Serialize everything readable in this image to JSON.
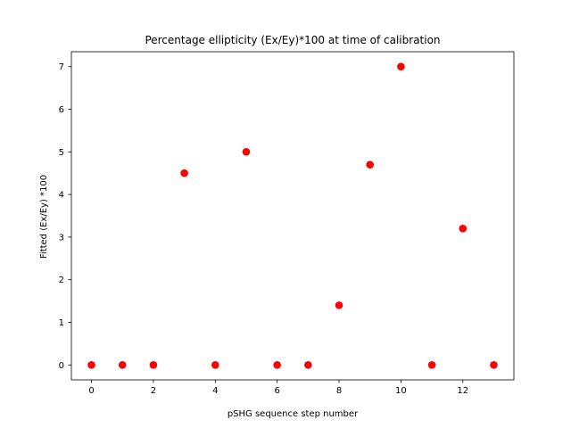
{
  "chart_data": {
    "type": "scatter",
    "title": "Percentage ellipticity (Ex/Ey)*100 at time of calibration",
    "xlabel": "pSHG sequence step number",
    "ylabel": "Fitted (Ex/Ey) *100",
    "x": [
      0,
      1,
      2,
      3,
      4,
      5,
      6,
      7,
      8,
      9,
      10,
      11,
      12,
      13
    ],
    "y": [
      0,
      0,
      0,
      4.5,
      0,
      5.0,
      0,
      0,
      1.4,
      4.7,
      7.0,
      0,
      3.2,
      0
    ],
    "xlim": [
      -0.65,
      13.65
    ],
    "ylim": [
      -0.35,
      7.35
    ],
    "xticks": [
      0,
      2,
      4,
      6,
      8,
      10,
      12
    ],
    "yticks": [
      0,
      1,
      2,
      3,
      4,
      5,
      6,
      7
    ],
    "grid": false,
    "marker_color": "#ff0000"
  }
}
